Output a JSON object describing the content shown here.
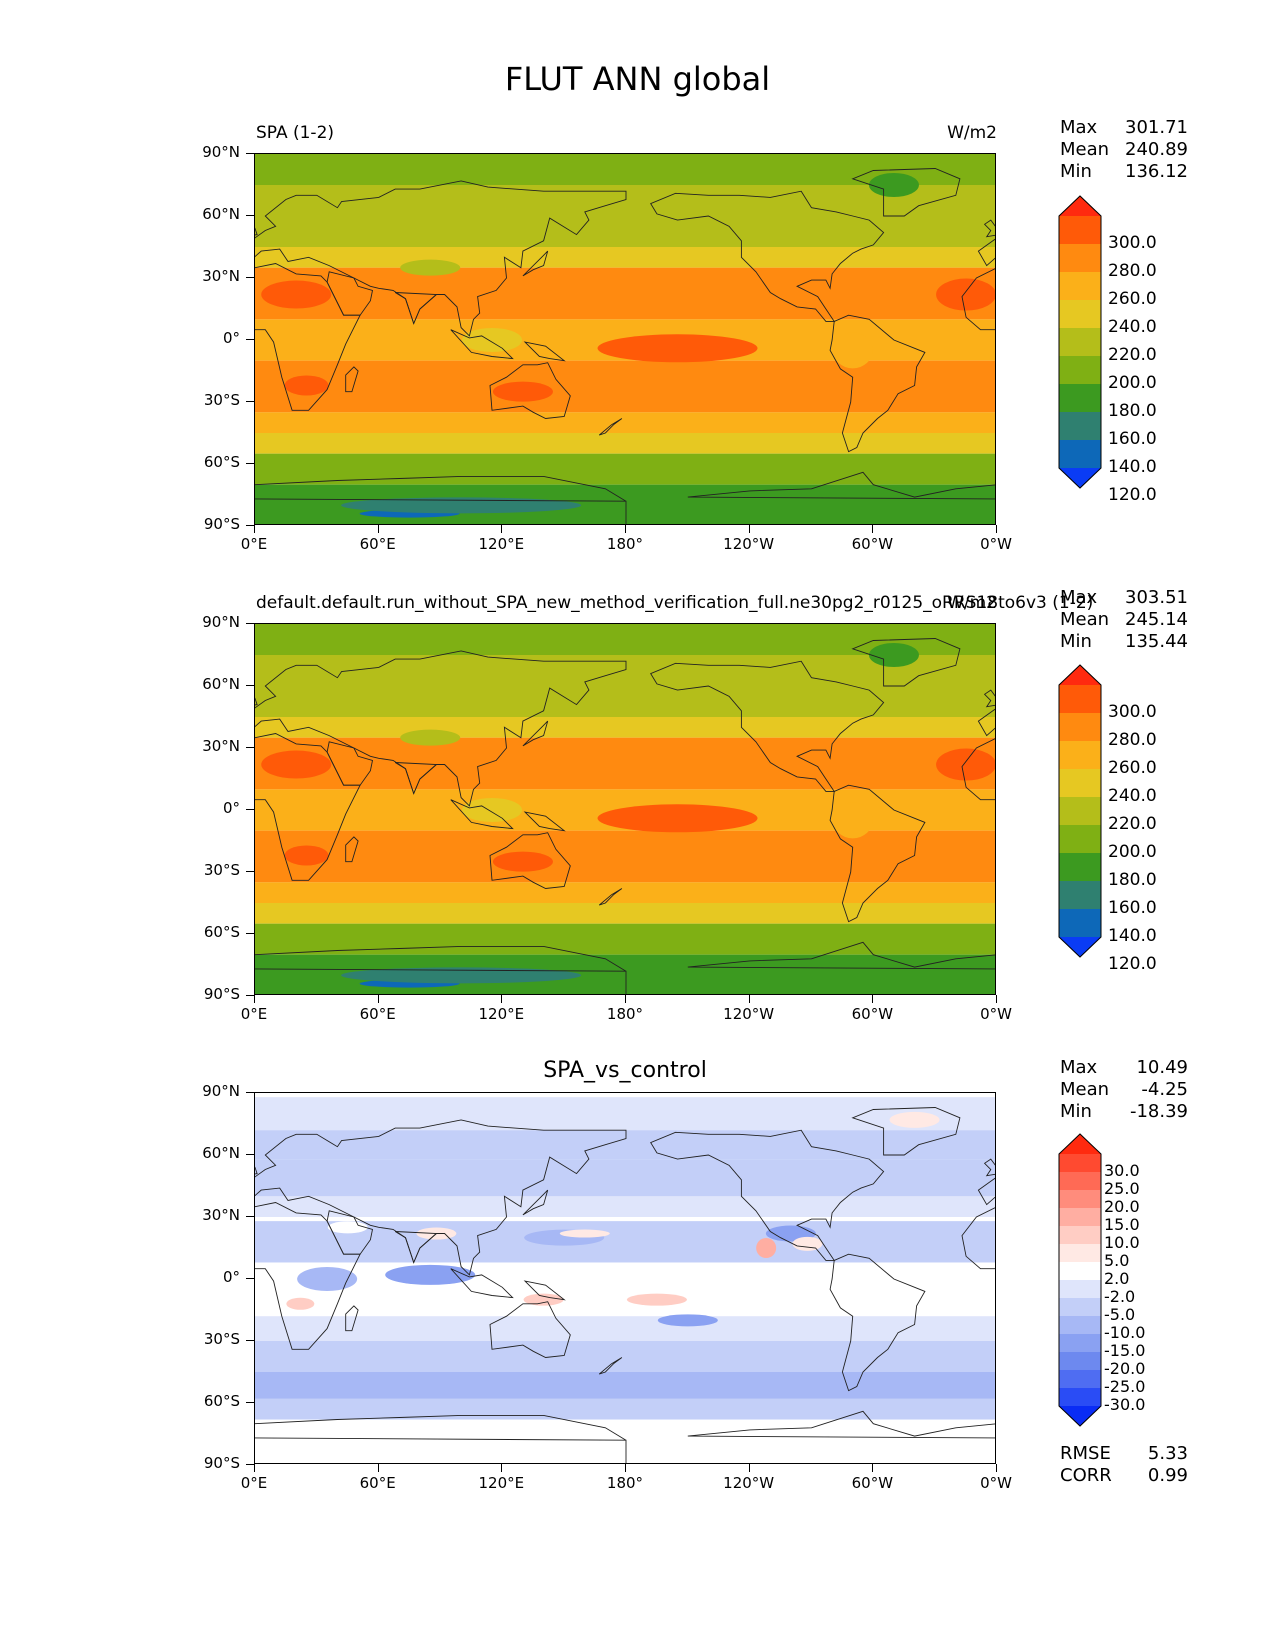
{
  "figure": {
    "title": "FLUT ANN global"
  },
  "axes": {
    "lat_labels": [
      "90°N",
      "60°N",
      "30°N",
      "0°",
      "30°S",
      "60°S",
      "90°S"
    ],
    "lon_labels": [
      "0°E",
      "60°E",
      "120°E",
      "180°",
      "120°W",
      "60°W",
      "0°W"
    ]
  },
  "panels": [
    {
      "id": "test",
      "title_left": "SPA (1-2)",
      "title_right": "W/m2",
      "title_center": "",
      "stats": [
        {
          "label": "Max",
          "value": "301.71"
        },
        {
          "label": "Mean",
          "value": "240.89"
        },
        {
          "label": "Min",
          "value": "136.12"
        }
      ],
      "colorbar": {
        "labels": [
          "300.0",
          "280.0",
          "260.0",
          "240.0",
          "220.0",
          "200.0",
          "180.0",
          "160.0",
          "140.0",
          "120.0"
        ],
        "colors": [
          "#ff2a0f",
          "#ff5a08",
          "#ff8a10",
          "#fbb019",
          "#e6c822",
          "#b4be1a",
          "#7fb014",
          "#3c9a20",
          "#2f8070",
          "#0d68b8",
          "#0a3cf5"
        ]
      }
    },
    {
      "id": "ref",
      "title_left": "default.default.run_without_SPA_new_method_verification_full.ne30pg2_r0125_oRRS18to6v3 (1-2)",
      "title_right": "W/m2",
      "title_center": "",
      "stats": [
        {
          "label": "Max",
          "value": "303.51"
        },
        {
          "label": "Mean",
          "value": "245.14"
        },
        {
          "label": "Min",
          "value": "135.44"
        }
      ],
      "colorbar": {
        "labels": [
          "300.0",
          "280.0",
          "260.0",
          "240.0",
          "220.0",
          "200.0",
          "180.0",
          "160.0",
          "140.0",
          "120.0"
        ],
        "colors": [
          "#ff2a0f",
          "#ff5a08",
          "#ff8a10",
          "#fbb019",
          "#e6c822",
          "#b4be1a",
          "#7fb014",
          "#3c9a20",
          "#2f8070",
          "#0d68b8",
          "#0a3cf5"
        ]
      }
    },
    {
      "id": "diff",
      "title_left": "",
      "title_right": "",
      "title_center": "SPA_vs_control",
      "stats": [
        {
          "label": "Max",
          "value": "10.49"
        },
        {
          "label": "Mean",
          "value": "-4.25"
        },
        {
          "label": "Min",
          "value": "-18.39"
        }
      ],
      "colorbar": {
        "labels": [
          "30.0",
          "25.0",
          "20.0",
          "15.0",
          "10.0",
          "5.0",
          "2.0",
          "-2.0",
          "-5.0",
          "-10.0",
          "-15.0",
          "-20.0",
          "-25.0",
          "-30.0"
        ],
        "colors": [
          "#ff2a0f",
          "#ff4a30",
          "#ff6a55",
          "#ff8c7c",
          "#ffaea2",
          "#ffcdc4",
          "#ffe9e4",
          "#ffffff",
          "#dfe5fb",
          "#c3cff8",
          "#a7b8f5",
          "#8aa1f2",
          "#6d89ef",
          "#4f6df2",
          "#2a4cf5",
          "#0a2cf5"
        ]
      },
      "metrics": [
        {
          "label": "RMSE",
          "value": "5.33"
        },
        {
          "label": "CORR",
          "value": "0.99"
        }
      ]
    }
  ]
}
